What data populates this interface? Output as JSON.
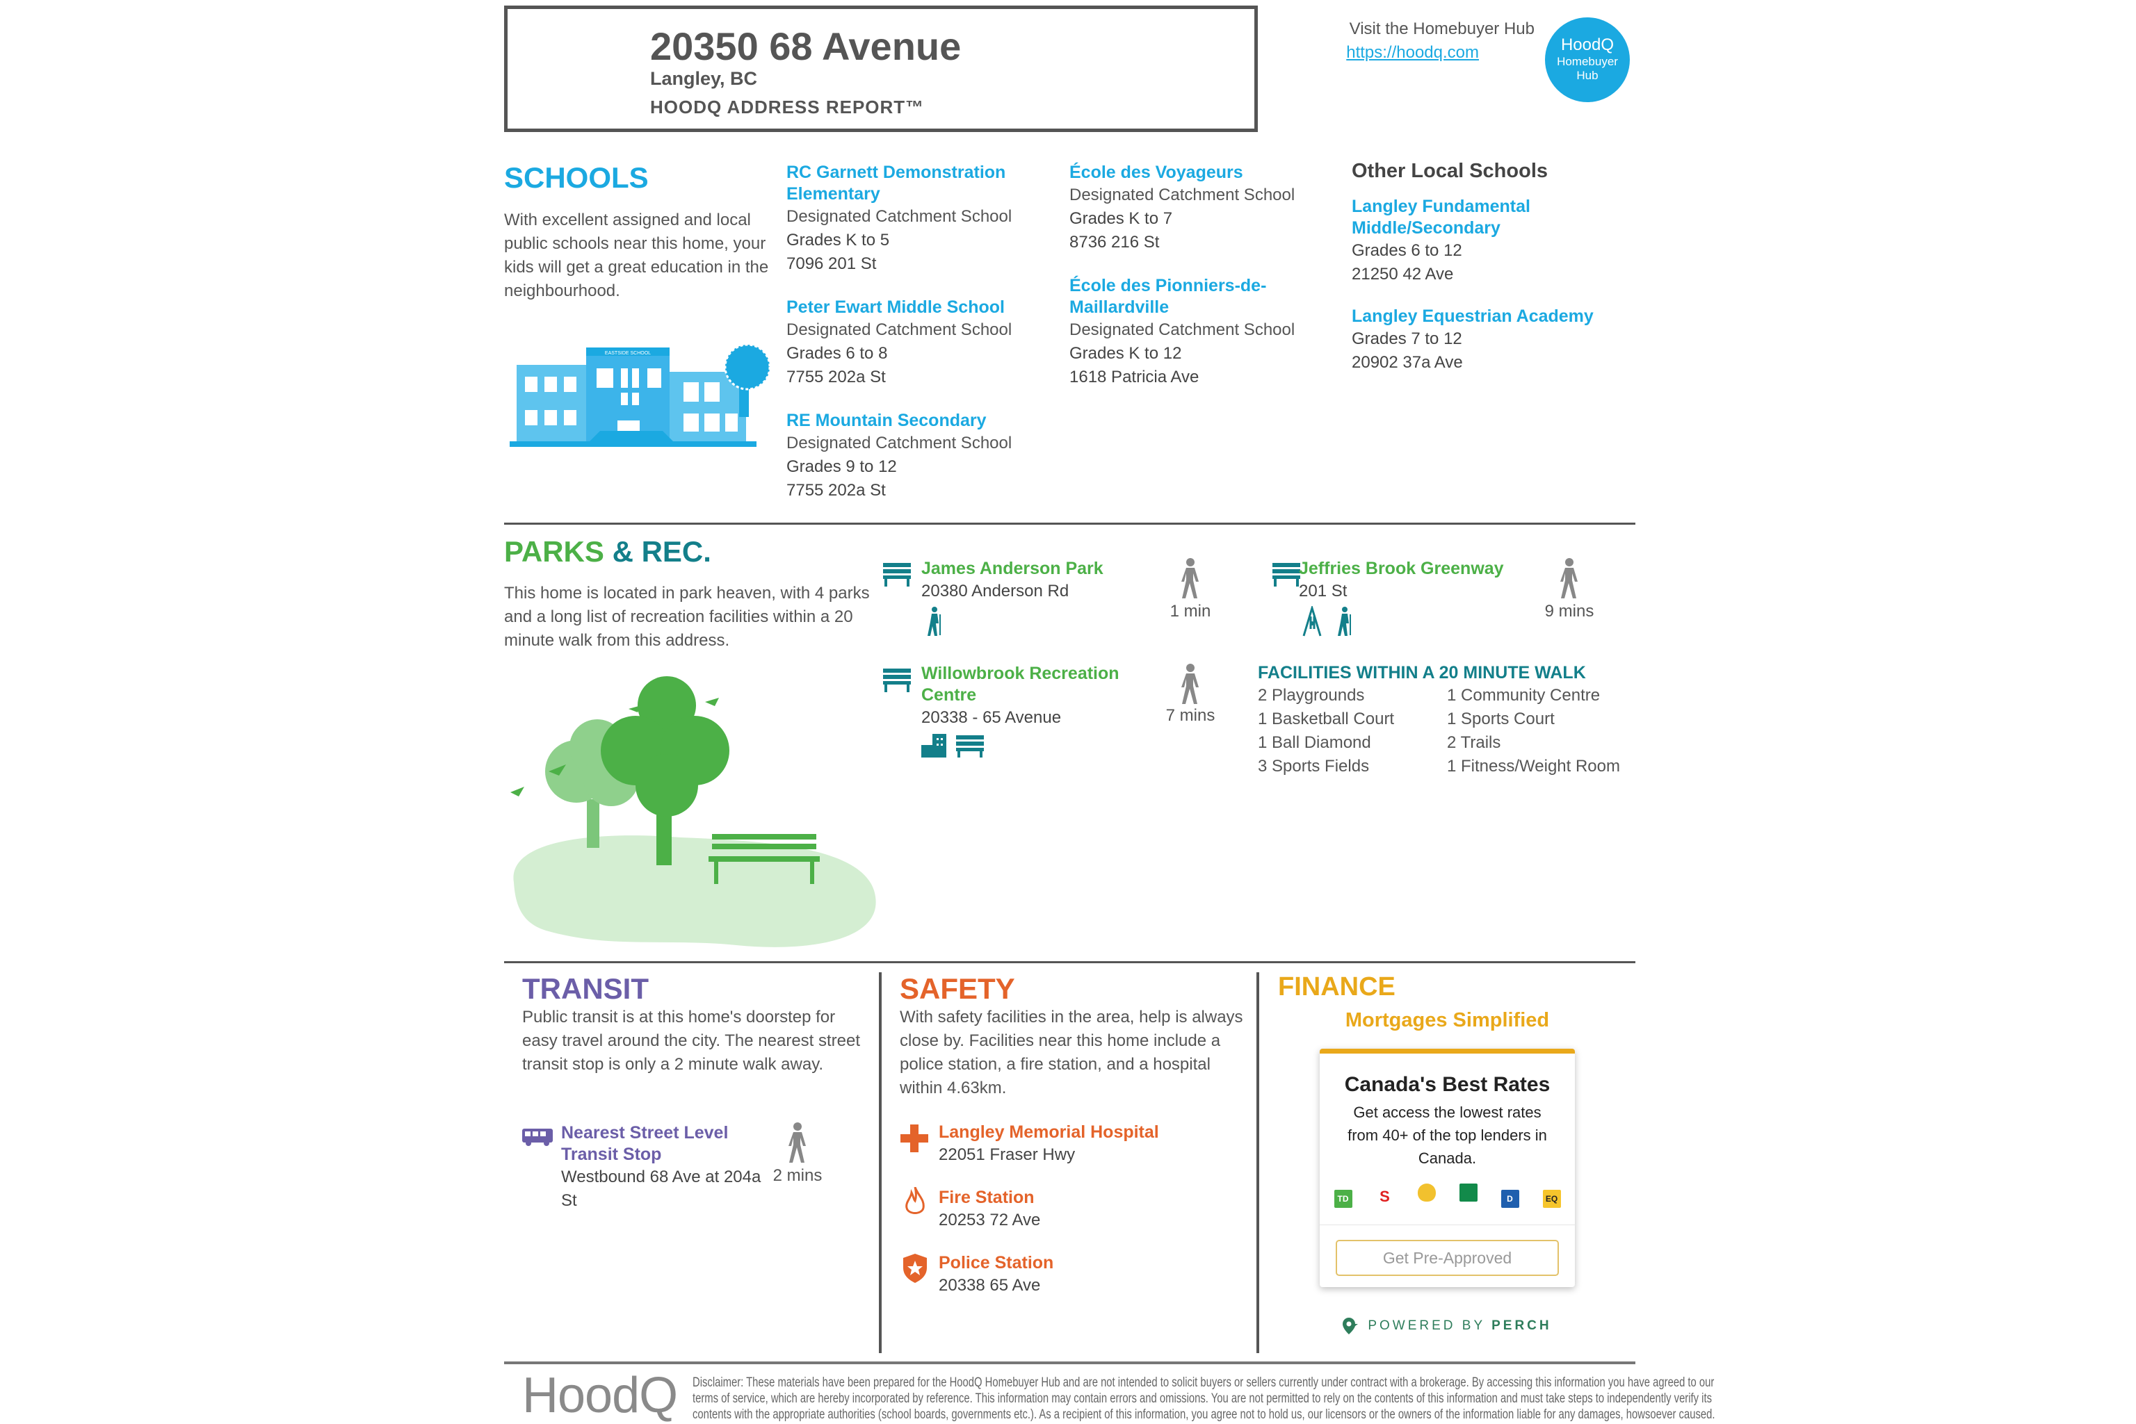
{
  "header": {
    "address": "20350 68 Avenue",
    "city": "Langley, BC",
    "report": "HOODQ ADDRESS REPORT™",
    "visit": "Visit the Homebuyer Hub",
    "link": "https://hoodq.com",
    "hub": [
      "HoodQ",
      "Homebuyer",
      "Hub"
    ]
  },
  "colors": {
    "schools": "#1ba9e1",
    "parks": "#4cb047",
    "rec": "#137f8a",
    "transit": "#6b5ea8",
    "safety": "#e4632a",
    "finance": "#e9a81a"
  },
  "schools": {
    "title": "SCHOOLS",
    "intro": "With excellent assigned and local public schools near this home, your kids will get a great education in the neighbourhood.",
    "illustration_sign": "EASTSIDE SCHOOL",
    "items": [
      {
        "name": "RC Garnett Demonstration Elementary",
        "type": "Designated Catchment School",
        "grades": "Grades K to 5",
        "address": "7096 201 St"
      },
      {
        "name": "Peter Ewart Middle School",
        "type": "Designated Catchment School",
        "grades": "Grades 6 to 8",
        "address": "7755 202a St"
      },
      {
        "name": "RE Mountain Secondary",
        "type": "Designated Catchment School",
        "grades": "Grades 9 to 12",
        "address": "7755 202a St"
      },
      {
        "name": "École des Voyageurs",
        "type": "Designated Catchment School",
        "grades": "Grades K to 7",
        "address": "8736 216 St"
      },
      {
        "name": "École des Pionniers-de-Maillardville",
        "type": "Designated Catchment School",
        "grades": "Grades K to 12",
        "address": "1618 Patricia Ave"
      }
    ],
    "other_title": "Other Local Schools",
    "other": [
      {
        "name": "Langley Fundamental Middle/Secondary",
        "grades": "Grades 6 to 12",
        "address": "21250 42 Ave"
      },
      {
        "name": "Langley Equestrian Academy",
        "grades": "Grades 7 to 12",
        "address": "20902 37a Ave"
      }
    ]
  },
  "parks": {
    "title_a": "PARKS",
    "title_b": "& REC.",
    "intro": "This home is located in park heaven, with 4 parks and a long list of recreation facilities within a 20 minute walk from this address.",
    "items": [
      {
        "name": "James Anderson Park",
        "address": "20380 Anderson Rd",
        "walk": "1 min",
        "icons": [
          "hiking-icon"
        ]
      },
      {
        "name": "Jeffries Brook Greenway",
        "address": "201 St",
        "walk": "9 mins",
        "icons": [
          "swing-icon",
          "hiking-icon"
        ]
      },
      {
        "name": "Willowbrook Recreation Centre",
        "address": "20338 - 65 Avenue",
        "walk": "7 mins",
        "icons": [
          "building-icon",
          "bench-icon"
        ]
      }
    ],
    "facilities_title": "FACILITIES WITHIN A 20 MINUTE WALK",
    "facilities": [
      "2 Playgrounds",
      "1 Basketball Court",
      "1 Ball Diamond",
      "3 Sports Fields",
      "1 Community Centre",
      "1 Sports Court",
      "2 Trails",
      "1 Fitness/Weight Room"
    ]
  },
  "transit": {
    "title": "TRANSIT",
    "intro": "Public transit is at this home's doorstep for easy travel around the city. The nearest street transit stop is only a 2 minute walk away.",
    "stop_name": "Nearest Street Level Transit Stop",
    "stop_desc": "Westbound 68 Ave at 204a St",
    "walk": "2 mins"
  },
  "safety": {
    "title": "SAFETY",
    "intro": "With safety facilities in the area, help is always close by. Facilities near this home include a police station, a fire station, and a hospital within 4.63km.",
    "items": [
      {
        "name": "Langley Memorial Hospital",
        "address": "22051 Fraser Hwy"
      },
      {
        "name": "Fire Station",
        "address": "20253 72 Ave"
      },
      {
        "name": "Police Station",
        "address": "20338 65 Ave"
      }
    ]
  },
  "finance": {
    "title": "FINANCE",
    "subtitle": "Mortgages Simplified",
    "card_title": "Canada's Best Rates",
    "card_body": "Get access the lowest rates from 40+ of the top lenders in Canada.",
    "lenders": [
      "TD",
      "S",
      "acorn",
      "hexagon",
      "D",
      "EQ"
    ],
    "button": "Get Pre-Approved",
    "powered": "POWERED BY",
    "powered_brand": "PERCH"
  },
  "footer": {
    "logo": "HoodQ",
    "disclaimer": [
      "Disclaimer: These materials have been prepared for the HoodQ Homebuyer Hub and are not intended to solicit buyers or sellers currently under contract with a brokerage. By accessing this information you have agreed to our",
      "terms of service, which are hereby incorporated by reference. This information may contain errors and omissions. You are not permitted to rely on the contents of this information and must take steps to independently verify its",
      "contents with the appropriate authorities (school boards, governments etc.). As a recipient of this information, you agree not to hold us, our licensors or the owners of the information liable for any damages, howsoever caused."
    ]
  }
}
